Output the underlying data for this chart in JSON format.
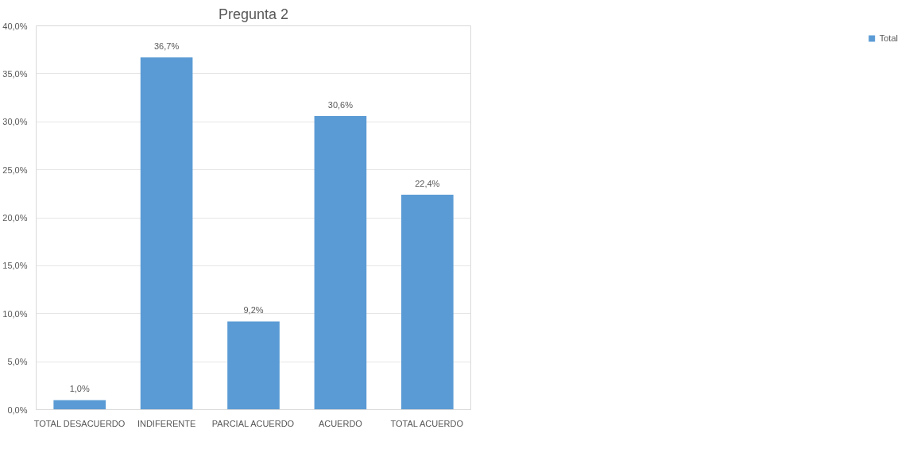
{
  "chart_data": {
    "type": "bar",
    "title": "Pregunta 2",
    "categories": [
      "TOTAL DESACUERDO",
      "INDIFERENTE",
      "PARCIAL ACUERDO",
      "ACUERDO",
      "TOTAL ACUERDO"
    ],
    "series": [
      {
        "name": "Total",
        "color": "#5b9bd5",
        "values": [
          1.0,
          36.7,
          9.2,
          30.6,
          22.4
        ]
      }
    ],
    "value_labels": [
      "1,0%",
      "36,7%",
      "9,2%",
      "30,6%",
      "22,4%"
    ],
    "ylim": [
      0,
      40
    ],
    "yticks": [
      {
        "value": 0,
        "label": "0,0%"
      },
      {
        "value": 5,
        "label": "5,0%"
      },
      {
        "value": 10,
        "label": "10,0%"
      },
      {
        "value": 15,
        "label": "15,0%"
      },
      {
        "value": 20,
        "label": "20,0%"
      },
      {
        "value": 25,
        "label": "25,0%"
      },
      {
        "value": 30,
        "label": "30,0%"
      },
      {
        "value": 35,
        "label": "35,0%"
      },
      {
        "value": 40,
        "label": "40,0%"
      }
    ],
    "grid": "y",
    "legend": "right"
  }
}
